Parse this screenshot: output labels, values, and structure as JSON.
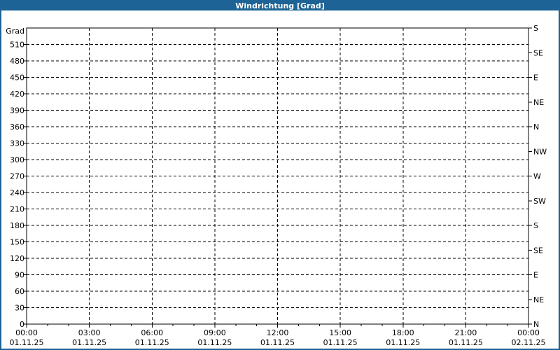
{
  "window": {
    "title": "Windrichtung [Grad]"
  },
  "colors": {
    "accent": "#1d6395",
    "titlebar_text": "#ffffff",
    "plot_background": "#ffffff",
    "grid": "#000000",
    "label_text": "#000000"
  },
  "chart_data": {
    "type": "line",
    "title": "Windrichtung [Grad]",
    "ylabel": "Grad",
    "ylim": [
      0,
      540
    ],
    "y_left_ticks_grad": [
      0,
      30,
      60,
      90,
      120,
      150,
      180,
      210,
      240,
      270,
      300,
      330,
      360,
      390,
      420,
      450,
      480,
      510
    ],
    "y_right_step_grad": 45,
    "y_right_labels_top_to_bottom": [
      "S",
      "SE",
      "E",
      "NE",
      "N",
      "NW",
      "W",
      "SW",
      "S",
      "SE",
      "E",
      "NE",
      "N"
    ],
    "x_time_labels": [
      "00:00",
      "03:00",
      "06:00",
      "09:00",
      "12:00",
      "15:00",
      "18:00",
      "21:00",
      "00:00"
    ],
    "x_date_labels": [
      "01.11.25",
      "01.11.25",
      "01.11.25",
      "01.11.25",
      "01.11.25",
      "01.11.25",
      "01.11.25",
      "01.11.25",
      "02.11.25"
    ],
    "x_major_step_hours": 3,
    "x_minor_step_hours": 1,
    "x_total_hours": 24,
    "grid": "dashed",
    "legend": "none",
    "series": []
  }
}
